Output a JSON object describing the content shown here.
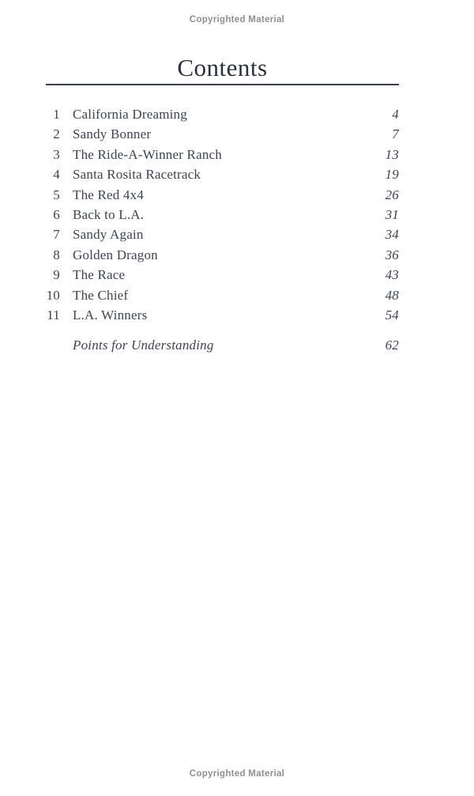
{
  "banners": {
    "top": "Copyrighted Material",
    "bottom": "Copyrighted Material"
  },
  "contents": {
    "title": "Contents",
    "entries": [
      {
        "number": "1",
        "title": "California Dreaming",
        "page": "4"
      },
      {
        "number": "2",
        "title": "Sandy Bonner",
        "page": "7"
      },
      {
        "number": "3",
        "title": "The Ride-A-Winner Ranch",
        "page": "13"
      },
      {
        "number": "4",
        "title": "Santa Rosita Racetrack",
        "page": "19"
      },
      {
        "number": "5",
        "title": "The Red 4x4",
        "page": "26"
      },
      {
        "number": "6",
        "title": "Back to L.A.",
        "page": "31"
      },
      {
        "number": "7",
        "title": "Sandy Again",
        "page": "34"
      },
      {
        "number": "8",
        "title": "Golden Dragon",
        "page": "36"
      },
      {
        "number": "9",
        "title": "The Race",
        "page": "43"
      },
      {
        "number": "10",
        "title": "The Chief",
        "page": "48"
      },
      {
        "number": "11",
        "title": "L.A. Winners",
        "page": "54"
      }
    ],
    "supplement": {
      "number": "",
      "title": "Points for Understanding",
      "page": "62"
    }
  },
  "colors": {
    "body_text": "#3d4450",
    "heading_text": "#2b313b",
    "rule": "#3a4049",
    "copyright_text": "#8f8f8f",
    "background": "#ffffff"
  }
}
